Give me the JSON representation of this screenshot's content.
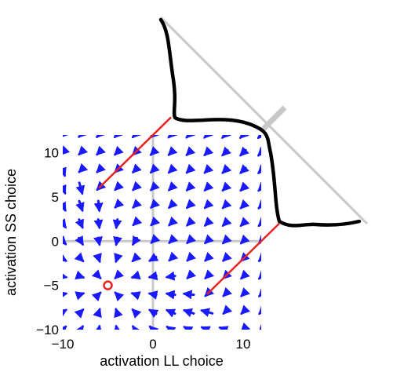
{
  "chart_data": {
    "type": "vector-field",
    "title": "",
    "xlabel": "activation LL choice",
    "ylabel": "activation SS choice",
    "xlim": [
      -10,
      12
    ],
    "ylim": [
      -10,
      12
    ],
    "xticks": [
      -10,
      0,
      10
    ],
    "yticks": [
      -10,
      -5,
      0,
      5,
      10
    ],
    "grid": false,
    "colors": {
      "arrows": "#1a1aff",
      "threshold_lines": "#e8231f",
      "marker": "#e8231f",
      "zero_lines": "#c8c8c8",
      "distribution_curve": "#000000",
      "diagonal_axis": "#c8c8c8"
    },
    "field": {
      "grid_x": [
        -10,
        -8,
        -6,
        -4,
        -2,
        0,
        2,
        4,
        6,
        8,
        10,
        12
      ],
      "grid_y": [
        -10,
        -8,
        -6,
        -4,
        -2,
        0,
        2,
        4,
        6,
        8,
        10,
        12
      ],
      "stable_points": [
        [
          -5,
          -5
        ],
        [
          7,
          7
        ]
      ],
      "description_of_dynamics": "arrows converge on attractor near (-5,-5) in lower-left, and toward upper-right"
    },
    "threshold_lines": [
      {
        "x": [
          -6,
          2
        ],
        "y": [
          6,
          14
        ]
      },
      {
        "x": [
          6,
          14
        ],
        "y": [
          -6,
          2
        ]
      }
    ],
    "marker": {
      "x": -5,
      "y": -5,
      "shape": "circle"
    },
    "distribution_curve": {
      "along": "anti-diagonal",
      "shape": "bimodal",
      "peaks_at_threshold_lines": true
    }
  }
}
